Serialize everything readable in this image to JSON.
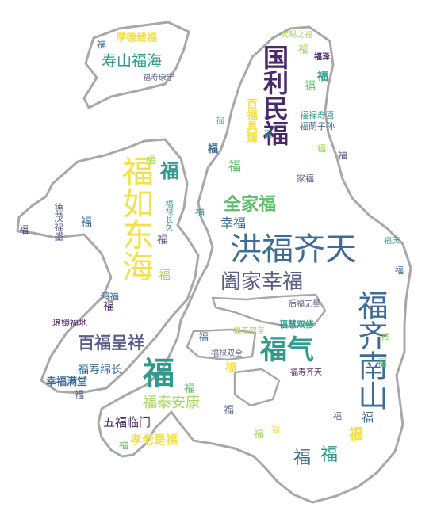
{
  "wordcloud": {
    "words": [
      "洪福齐天",
      "福如东海",
      "福齐南山",
      "阖家幸福",
      "国利民福",
      "福气",
      "福",
      "百福呈祥",
      "福泰安康",
      "全家福",
      "寿山福海",
      "厚德载福",
      "五福临门",
      "孝老是福",
      "幸福满堂",
      "福寿绵长",
      "琅嬛福地",
      "福禄寿喜",
      "福荫子孙",
      "百福具臻",
      "大赐之福",
      "福慧双修",
      "福寿康宁",
      "幸福",
      "鸿福",
      "家福",
      "福庆",
      "福泽",
      "后福无量",
      "福禄双全",
      "福寿齐天",
      "福禄长久",
      "德茂福盛",
      "福无双至"
    ],
    "colors": {
      "yellow": "#f2e14a",
      "lime": "#a7d65a",
      "green": "#5fbe69",
      "teal": "#2f9b8c",
      "blue": "#3f6c96",
      "slate": "#5a5f8a",
      "purple": "#4a2a6a",
      "outline": "#a8a8a8"
    }
  }
}
